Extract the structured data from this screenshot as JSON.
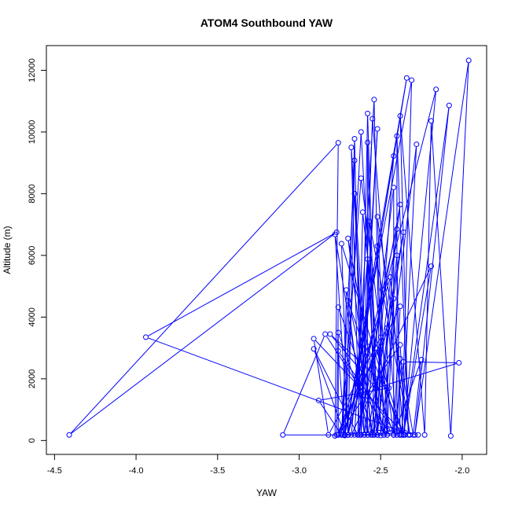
{
  "chart_data": {
    "type": "line",
    "title": "ATOM4 Southbound YAW",
    "xlabel": "YAW",
    "ylabel": "Altitude (m)",
    "xlim": [
      -4.55,
      -1.85
    ],
    "ylim": [
      -450,
      12800
    ],
    "x_ticks": [
      -4.5,
      -4.0,
      -3.5,
      -3.0,
      -2.5,
      -2.0
    ],
    "x_tick_labels": [
      "-4.5",
      "-4.0",
      "-3.5",
      "-3.0",
      "-2.5",
      "-2.0"
    ],
    "y_ticks": [
      0,
      2000,
      4000,
      6000,
      8000,
      10000,
      12000
    ],
    "y_tick_labels": [
      "0",
      "2000",
      "4000",
      "6000",
      "8000",
      "10000",
      "12000"
    ],
    "grid": false,
    "line_color": "#0000ff",
    "marker": "open-circle",
    "series": [
      {
        "values": [
          [
            -2.78,
            150
          ],
          [
            -2.76,
            9650
          ],
          [
            -4.41,
            180
          ],
          [
            -2.77,
            6750
          ],
          [
            -3.94,
            3350
          ],
          [
            -2.35,
            250
          ],
          [
            -2.66,
            180
          ],
          [
            -2.54,
            11050
          ],
          [
            -2.5,
            160
          ],
          [
            -2.28,
            9600
          ],
          [
            -2.37,
            180
          ],
          [
            -2.31,
            11680
          ],
          [
            -2.72,
            160
          ],
          [
            -2.34,
            11750
          ],
          [
            -2.7,
            180
          ],
          [
            -2.16,
            11380
          ],
          [
            -2.36,
            180
          ],
          [
            -2.08,
            10860
          ],
          [
            -2.29,
            180
          ],
          [
            -1.96,
            12320
          ],
          [
            -2.07,
            150
          ],
          [
            -2.19,
            10360
          ],
          [
            -2.23,
            180
          ],
          [
            -2.38,
            10520
          ],
          [
            -2.33,
            180
          ],
          [
            -2.4,
            9870
          ],
          [
            -2.4,
            180
          ],
          [
            -2.55,
            10430
          ],
          [
            -2.62,
            180
          ],
          [
            -2.58,
            10600
          ],
          [
            -2.52,
            180
          ],
          [
            -2.62,
            10000
          ],
          [
            -2.72,
            180
          ],
          [
            -2.66,
            9780
          ],
          [
            -2.62,
            180
          ],
          [
            -2.52,
            10100
          ],
          [
            -2.63,
            180
          ],
          [
            -2.68,
            9500
          ],
          [
            -2.58,
            180
          ],
          [
            -2.58,
            9660
          ],
          [
            -2.54,
            180
          ],
          [
            -2.42,
            9220
          ],
          [
            -2.7,
            180
          ],
          [
            -2.66,
            9080
          ],
          [
            -2.74,
            180
          ],
          [
            -2.62,
            8500
          ],
          [
            -2.42,
            180
          ],
          [
            -2.42,
            8200
          ],
          [
            -2.6,
            180
          ],
          [
            -2.66,
            8000
          ],
          [
            -2.56,
            180
          ],
          [
            -2.38,
            7650
          ],
          [
            -2.64,
            180
          ],
          [
            -2.61,
            7400
          ],
          [
            -2.46,
            180
          ],
          [
            -2.52,
            7250
          ],
          [
            -2.32,
            180
          ],
          [
            -2.57,
            7100
          ],
          [
            -2.52,
            180
          ],
          [
            -2.4,
            6850
          ],
          [
            -2.7,
            180
          ],
          [
            -2.78,
            6680
          ],
          [
            -2.58,
            180
          ],
          [
            -2.36,
            6750
          ],
          [
            -2.55,
            180
          ],
          [
            -2.7,
            6550
          ],
          [
            -2.48,
            180
          ],
          [
            -2.52,
            6300
          ],
          [
            -2.7,
            180
          ],
          [
            -2.74,
            6380
          ],
          [
            -2.38,
            180
          ],
          [
            -2.4,
            6000
          ],
          [
            -2.52,
            180
          ],
          [
            -2.58,
            5880
          ],
          [
            -2.68,
            180
          ],
          [
            -2.19,
            5650
          ],
          [
            -2.36,
            180
          ],
          [
            -2.44,
            5300
          ],
          [
            -2.73,
            180
          ],
          [
            -2.71,
            4880
          ],
          [
            -2.52,
            180
          ],
          [
            -2.49,
            4900
          ],
          [
            -2.6,
            180
          ],
          [
            -2.7,
            4530
          ],
          [
            -2.42,
            180
          ],
          [
            -2.38,
            4350
          ],
          [
            -2.77,
            180
          ],
          [
            -2.76,
            4320
          ],
          [
            -2.48,
            180
          ],
          [
            -2.42,
            4600
          ],
          [
            -2.46,
            180
          ],
          [
            -2.46,
            3650
          ],
          [
            -2.76,
            180
          ],
          [
            -2.76,
            3500
          ],
          [
            -2.54,
            180
          ],
          [
            -2.5,
            3350
          ],
          [
            -2.82,
            180
          ],
          [
            -2.91,
            3300
          ],
          [
            -2.35,
            180
          ],
          [
            -2.38,
            3100
          ],
          [
            -2.76,
            180
          ],
          [
            -2.58,
            3050
          ],
          [
            -2.36,
            180
          ],
          [
            -2.53,
            3000
          ],
          [
            -2.64,
            180
          ],
          [
            -2.91,
            2970
          ],
          [
            -2.72,
            180
          ],
          [
            -2.76,
            2900
          ],
          [
            -2.4,
            180
          ],
          [
            -2.38,
            2650
          ],
          [
            -2.3,
            180
          ],
          [
            -2.25,
            2620
          ],
          [
            -2.42,
            180
          ],
          [
            -2.36,
            2550
          ],
          [
            -2.02,
            2520
          ],
          [
            -2.53,
            1700
          ],
          [
            -2.81,
            3450
          ],
          [
            -2.45,
            1700
          ],
          [
            -2.88,
            1300
          ],
          [
            -2.74,
            180
          ],
          [
            -2.47,
            350
          ],
          [
            -2.38,
            180
          ],
          [
            -3.1,
            180
          ],
          [
            -2.84,
            3450
          ],
          [
            -2.46,
            350
          ],
          [
            -2.27,
            180
          ]
        ]
      }
    ]
  }
}
